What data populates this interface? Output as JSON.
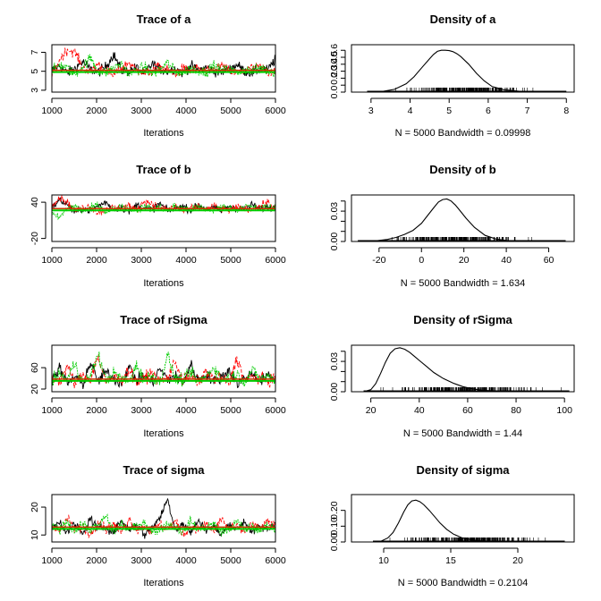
{
  "chart_data": [
    {
      "type": "line",
      "kind": "trace",
      "title": "Trace of a",
      "xlabel": "Iterations",
      "ylabel": "",
      "xlim": [
        1000,
        6000
      ],
      "ylim": [
        2.8,
        7.8
      ],
      "xticks": [
        1000,
        2000,
        3000,
        4000,
        5000,
        6000
      ],
      "yticks": [
        3,
        5,
        7
      ],
      "series": [
        {
          "color": "#000000",
          "center": 5.0,
          "spread": 0.55,
          "values": [
            5.1,
            5.6,
            4.8,
            5.3,
            6.0,
            5.2,
            4.9,
            5.5,
            6.8,
            5.1,
            5.0,
            5.4,
            4.7,
            5.8,
            5.2,
            5.0,
            5.3,
            4.8,
            5.6,
            5.1,
            5.4,
            5.0,
            4.9,
            5.2,
            5.7,
            5.0,
            4.8,
            5.3,
            5.1,
            6.3
          ]
        },
        {
          "color": "#ff0000",
          "center": 5.0,
          "spread": 0.55,
          "values": [
            4.4,
            6.2,
            7.3,
            7.0,
            5.4,
            4.9,
            5.8,
            5.0,
            4.6,
            5.3,
            5.9,
            5.2,
            4.8,
            5.0,
            5.6,
            5.1,
            4.7,
            5.3,
            5.0,
            5.4,
            4.9,
            5.2,
            5.6,
            5.0,
            4.8,
            5.1,
            5.3,
            5.5,
            4.9,
            5.2
          ]
        },
        {
          "color": "#00cc00",
          "center": 5.0,
          "spread": 0.55,
          "values": [
            5.0,
            5.7,
            5.3,
            4.6,
            5.5,
            6.4,
            5.0,
            4.9,
            5.3,
            5.8,
            4.8,
            5.1,
            5.5,
            4.7,
            5.2,
            5.9,
            5.0,
            4.8,
            5.4,
            5.1,
            4.9,
            5.6,
            5.0,
            5.3,
            4.8,
            5.2,
            5.0,
            5.4,
            5.1,
            4.9
          ]
        }
      ]
    },
    {
      "type": "line",
      "kind": "density",
      "title": "Density of a",
      "xlabel": "N = 5000   Bandwidth = 0.09998",
      "xlim": [
        2.5,
        8.2
      ],
      "ylim": [
        0,
        0.68
      ],
      "xticks": [
        3,
        4,
        5,
        6,
        7,
        8
      ],
      "yticks": [
        0.0,
        0.1,
        0.2,
        0.3,
        0.4,
        0.5,
        0.6
      ],
      "ytick_labels": [
        "0.0",
        "",
        "0.2",
        "0.3",
        "0.4",
        "0.5",
        "0.6"
      ],
      "curve": {
        "x": [
          2.9,
          3.3,
          3.6,
          3.9,
          4.1,
          4.3,
          4.5,
          4.6,
          4.7,
          4.8,
          4.9,
          5.0,
          5.1,
          5.2,
          5.3,
          5.5,
          5.7,
          5.9,
          6.1,
          6.4,
          6.8,
          7.3,
          8.0
        ],
        "y": [
          0.0,
          0.01,
          0.04,
          0.12,
          0.22,
          0.35,
          0.48,
          0.54,
          0.585,
          0.6,
          0.6,
          0.595,
          0.58,
          0.55,
          0.51,
          0.4,
          0.27,
          0.16,
          0.08,
          0.035,
          0.012,
          0.004,
          0.0
        ]
      },
      "rug_range": [
        3.3,
        7.5
      ]
    },
    {
      "type": "line",
      "kind": "trace",
      "title": "Trace of b",
      "xlabel": "Iterations",
      "xlim": [
        1000,
        6000
      ],
      "ylim": [
        -25,
        52
      ],
      "xticks": [
        1000,
        2000,
        3000,
        4000,
        5000,
        6000
      ],
      "yticks": [
        -20,
        40
      ],
      "series": [
        {
          "color": "#000000",
          "center": 28,
          "spread": 6,
          "values": [
            30,
            44,
            36,
            22,
            30,
            26,
            34,
            40,
            28,
            32,
            24,
            36,
            30,
            28,
            38,
            26,
            30,
            33,
            27,
            35,
            29,
            31,
            25,
            34,
            30,
            28,
            36,
            29,
            32,
            30
          ]
        },
        {
          "color": "#ff0000",
          "center": 28,
          "spread": 6,
          "values": [
            36,
            48,
            40,
            26,
            30,
            34,
            22,
            28,
            32,
            30,
            36,
            26,
            42,
            38,
            30,
            28,
            34,
            26,
            30,
            32,
            28,
            34,
            30,
            26,
            32,
            30,
            28,
            34,
            40,
            31
          ]
        },
        {
          "color": "#00cc00",
          "center": 28,
          "spread": 6,
          "values": [
            20,
            14,
            30,
            34,
            26,
            30,
            36,
            24,
            28,
            32,
            30,
            27,
            33,
            29,
            31,
            26,
            34,
            30,
            28,
            32,
            29,
            27,
            33,
            30,
            28,
            35,
            31,
            29,
            33,
            30
          ]
        }
      ]
    },
    {
      "type": "line",
      "kind": "density",
      "title": "Density of b",
      "xlabel": "N = 5000   Bandwidth = 1.634",
      "xlim": [
        -33,
        72
      ],
      "ylim": [
        0,
        0.046
      ],
      "xticks": [
        -20,
        0,
        20,
        40,
        60
      ],
      "yticks": [
        0.0,
        0.01,
        0.02,
        0.03,
        0.04
      ],
      "ytick_labels": [
        "0.00",
        "",
        "",
        "0.03",
        ""
      ],
      "curve": {
        "x": [
          -30,
          -22,
          -16,
          -12,
          -8,
          -4,
          0,
          3,
          6,
          8,
          10,
          12,
          14,
          16,
          18,
          21,
          25,
          30,
          35,
          40,
          45,
          55,
          68
        ],
        "y": [
          0.0,
          0.0005,
          0.002,
          0.004,
          0.007,
          0.011,
          0.018,
          0.026,
          0.034,
          0.039,
          0.0415,
          0.042,
          0.04,
          0.036,
          0.031,
          0.023,
          0.014,
          0.006,
          0.0025,
          0.001,
          0.0004,
          0.0001,
          0.0
        ]
      },
      "rug_range": [
        -25,
        60
      ]
    },
    {
      "type": "line",
      "kind": "trace",
      "title": "Trace of rSigma",
      "xlabel": "Iterations",
      "xlim": [
        1000,
        6000
      ],
      "ylim": [
        15,
        102
      ],
      "xticks": [
        1000,
        2000,
        3000,
        4000,
        5000,
        6000
      ],
      "yticks": [
        20,
        60
      ],
      "ytick_labels": [
        "20",
        "60"
      ],
      "series": [
        {
          "color": "#000000",
          "center": 37,
          "spread": 11,
          "values": [
            36,
            60,
            30,
            44,
            28,
            70,
            34,
            52,
            40,
            30,
            62,
            36,
            46,
            32,
            58,
            38,
            44,
            30,
            66,
            36,
            48,
            34,
            42,
            56,
            30,
            40,
            50,
            34,
            44,
            38
          ]
        },
        {
          "color": "#ff0000",
          "center": 37,
          "spread": 11,
          "values": [
            40,
            34,
            62,
            30,
            46,
            38,
            82,
            32,
            44,
            36,
            58,
            30,
            42,
            50,
            34,
            40,
            72,
            36,
            44,
            32,
            54,
            38,
            42,
            30,
            78,
            36,
            44,
            40,
            34,
            42
          ]
        },
        {
          "color": "#00cc00",
          "center": 37,
          "spread": 11,
          "values": [
            34,
            48,
            38,
            70,
            32,
            44,
            86,
            36,
            50,
            40,
            34,
            64,
            38,
            46,
            32,
            84,
            40,
            36,
            52,
            34,
            44,
            62,
            38,
            40,
            48,
            34,
            56,
            38,
            44,
            36
          ]
        }
      ]
    },
    {
      "type": "line",
      "kind": "density",
      "title": "Density of rSigma",
      "xlabel": "N = 5000   Bandwidth = 1.44",
      "xlim": [
        12,
        104
      ],
      "ylim": [
        0,
        0.046
      ],
      "xticks": [
        20,
        40,
        60,
        80,
        100
      ],
      "yticks": [
        0.0,
        0.01,
        0.02,
        0.03,
        0.04
      ],
      "ytick_labels": [
        "0.00",
        "",
        "",
        "0.03",
        ""
      ],
      "curve": {
        "x": [
          17,
          20,
          22,
          24,
          26,
          28,
          30,
          32,
          34,
          36,
          38,
          40,
          43,
          46,
          50,
          54,
          58,
          62,
          66,
          72,
          80,
          90,
          102
        ],
        "y": [
          0.0,
          0.002,
          0.008,
          0.018,
          0.029,
          0.038,
          0.0425,
          0.0435,
          0.042,
          0.039,
          0.035,
          0.031,
          0.025,
          0.019,
          0.013,
          0.0085,
          0.005,
          0.0028,
          0.0015,
          0.0006,
          0.0002,
          5e-05,
          0.0
        ]
      },
      "rug_range": [
        18,
        100
      ]
    },
    {
      "type": "line",
      "kind": "trace",
      "title": "Trace of sigma",
      "xlabel": "Iterations",
      "xlim": [
        1000,
        6000
      ],
      "ylim": [
        7.5,
        24.5
      ],
      "xticks": [
        1000,
        2000,
        3000,
        4000,
        5000,
        6000
      ],
      "yticks": [
        10,
        20
      ],
      "series": [
        {
          "color": "#000000",
          "center": 12.5,
          "spread": 1.6,
          "values": [
            12,
            15,
            11,
            14,
            10,
            16,
            12,
            13,
            11,
            15,
            12,
            14,
            10,
            13,
            16,
            23,
            12,
            14,
            11,
            15,
            12,
            13,
            10,
            14,
            12,
            15,
            11,
            13,
            12,
            14
          ]
        },
        {
          "color": "#ff0000",
          "center": 12.5,
          "spread": 1.6,
          "values": [
            14,
            11,
            16,
            12,
            13,
            10,
            15,
            12,
            14,
            11,
            16,
            12,
            13,
            11,
            14,
            12,
            15,
            10,
            13,
            12,
            14,
            11,
            16,
            12,
            13,
            11,
            14,
            12,
            15,
            13
          ]
        },
        {
          "color": "#00cc00",
          "center": 12.5,
          "spread": 1.6,
          "values": [
            13,
            12,
            15,
            11,
            14,
            12,
            13,
            17,
            11,
            14,
            12,
            13,
            15,
            11,
            12,
            14,
            13,
            11,
            15,
            12,
            13,
            14,
            11,
            12,
            15,
            12,
            13,
            11,
            14,
            12
          ]
        }
      ]
    },
    {
      "type": "line",
      "kind": "density",
      "title": "Density of sigma",
      "xlabel": "N = 5000   Bandwidth = 0.2104",
      "xlim": [
        7.6,
        24.2
      ],
      "ylim": [
        0,
        0.3
      ],
      "xticks": [
        10,
        15,
        20
      ],
      "yticks": [
        0.0,
        0.1,
        0.2
      ],
      "ytick_labels": [
        "0.00",
        "0.10",
        "0.20"
      ],
      "curve": {
        "x": [
          9.2,
          9.8,
          10.3,
          10.7,
          11.1,
          11.5,
          11.8,
          12.1,
          12.4,
          12.7,
          13.0,
          13.4,
          13.8,
          14.2,
          14.7,
          15.2,
          15.8,
          16.5,
          17.3,
          18.5,
          20.0,
          22.0,
          23.5
        ],
        "y": [
          0.0,
          0.005,
          0.025,
          0.06,
          0.12,
          0.19,
          0.235,
          0.26,
          0.265,
          0.255,
          0.235,
          0.2,
          0.16,
          0.12,
          0.08,
          0.05,
          0.028,
          0.014,
          0.007,
          0.003,
          0.001,
          0.0003,
          0.0
        ]
      },
      "rug_range": [
        9.5,
        23.5
      ]
    }
  ]
}
